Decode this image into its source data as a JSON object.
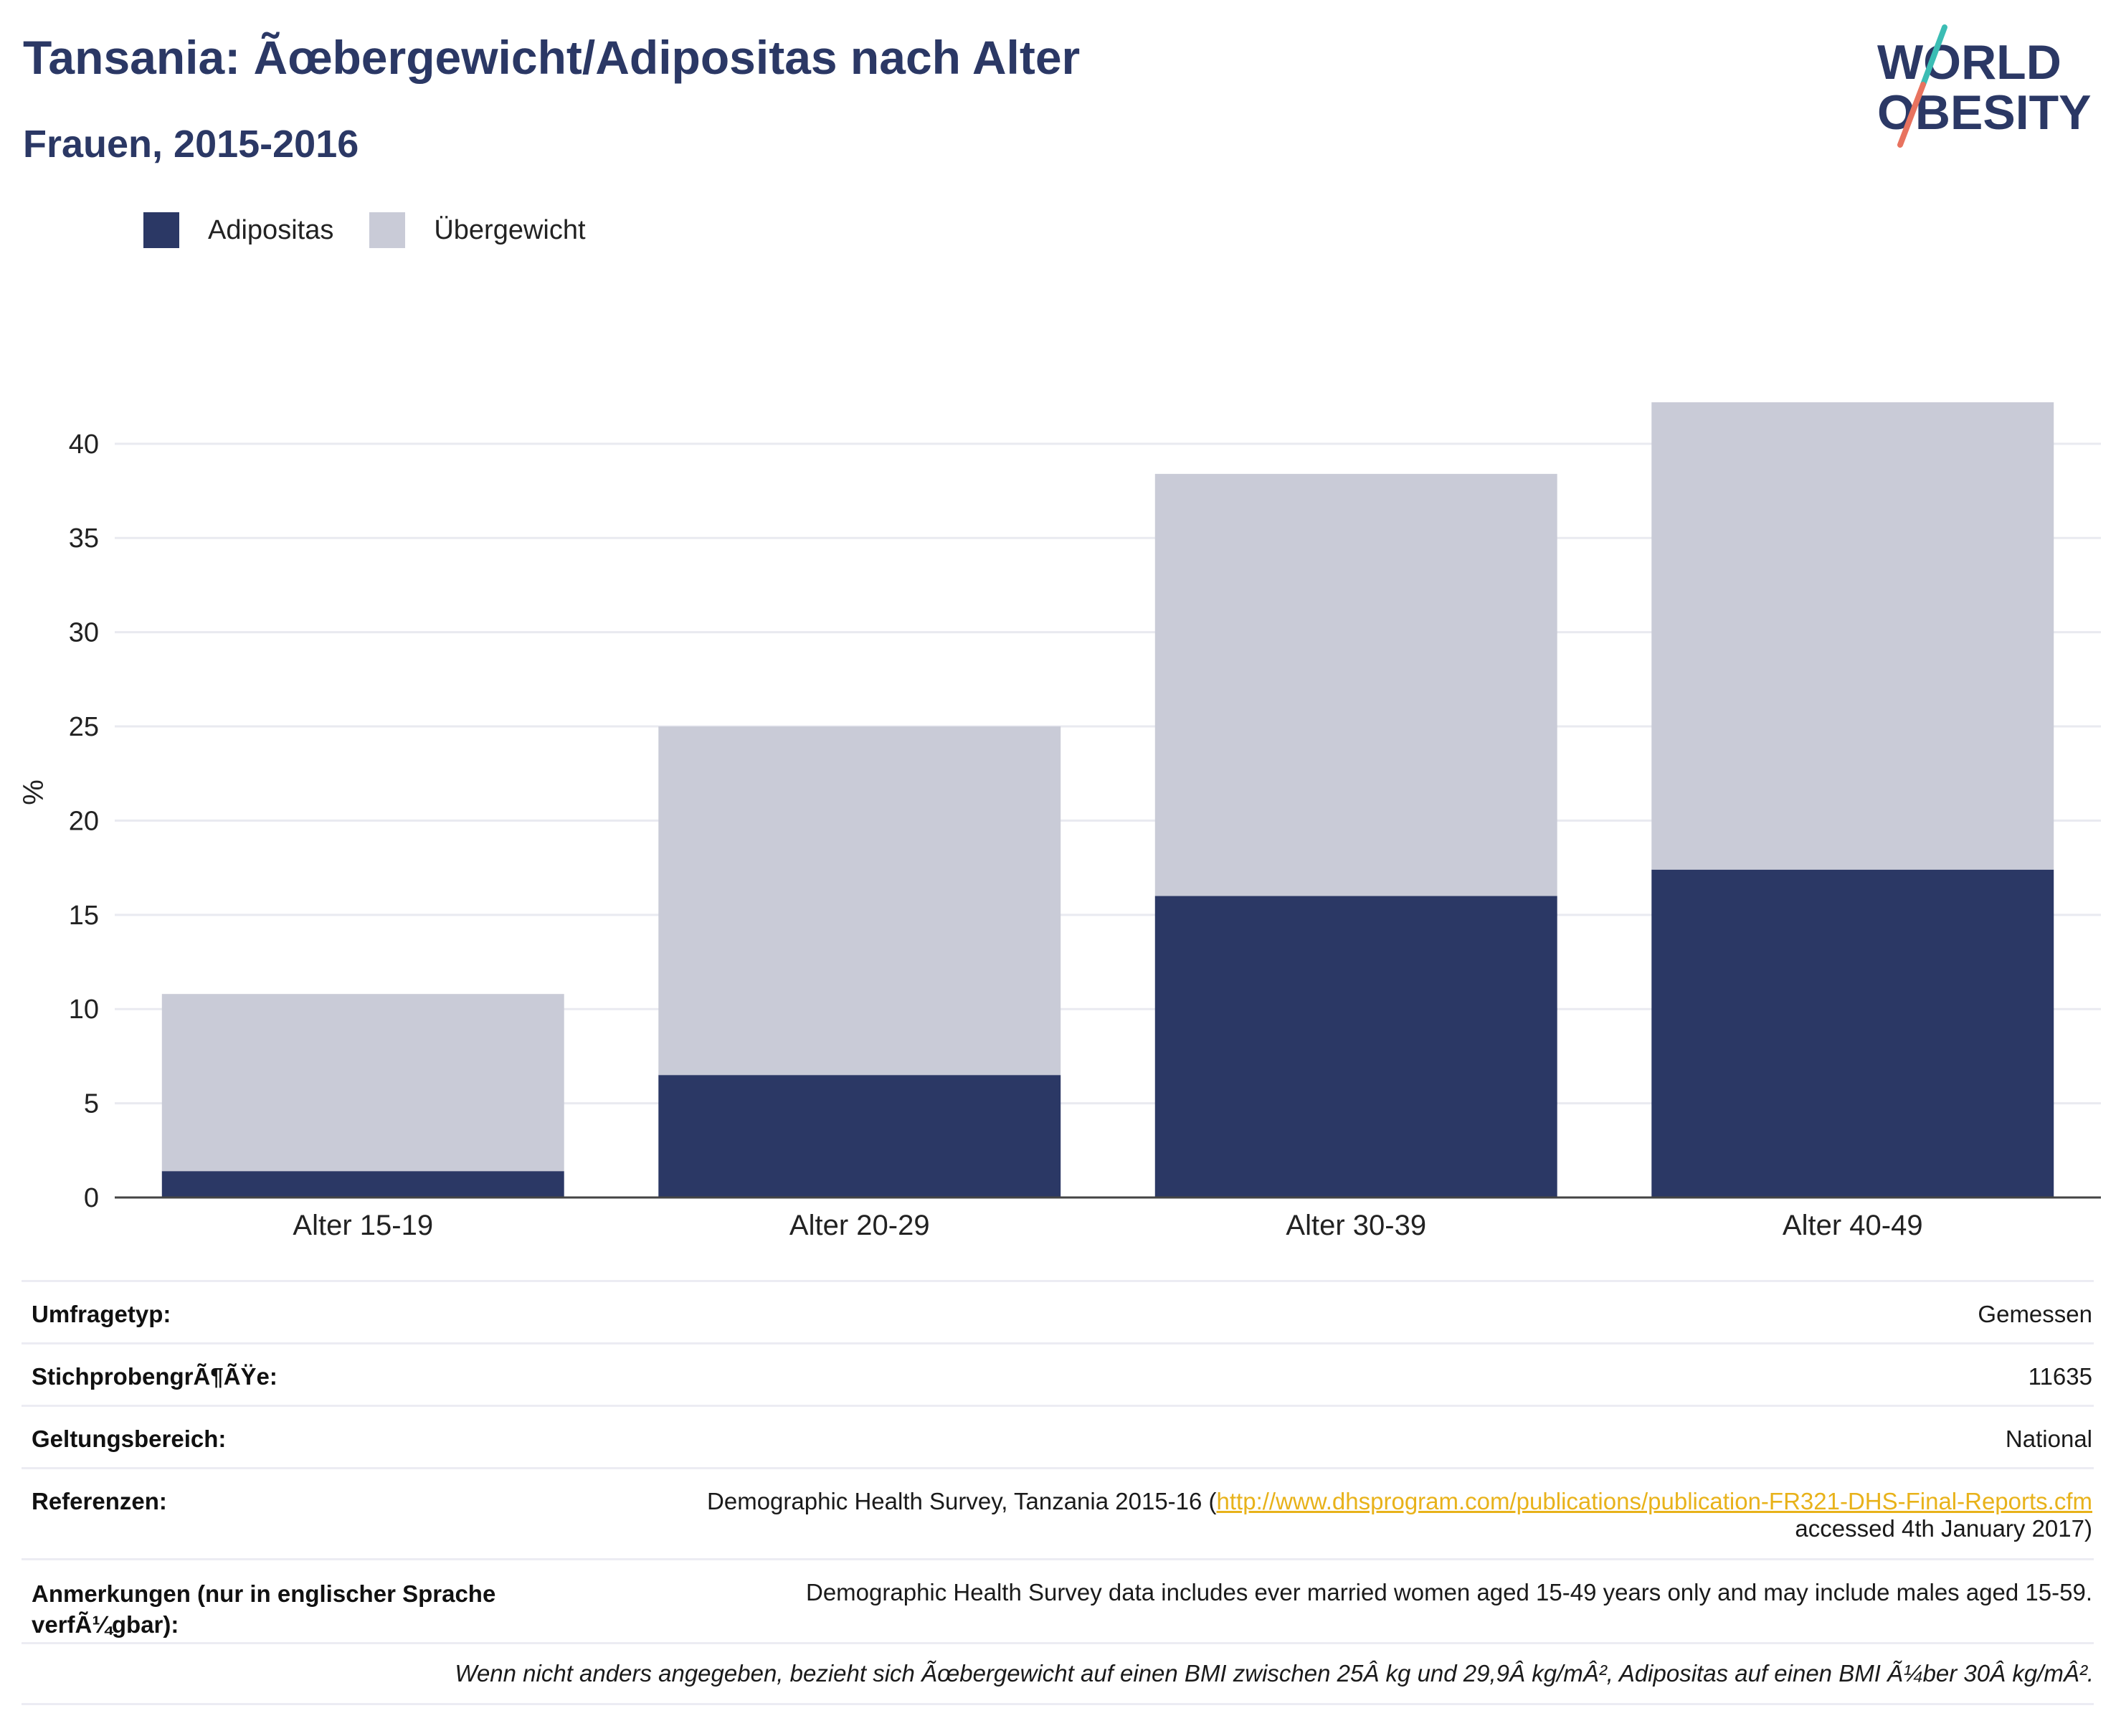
{
  "header": {
    "title": "Tansania: Ãœbergewicht/Adipositas nach Alter",
    "subtitle": "Frauen, 2015-2016"
  },
  "logo": {
    "line1": "WORLD",
    "line2": "OBESITY"
  },
  "colors": {
    "obesity": "#2b3865",
    "overweight": "#c9cbd7",
    "title": "#2b3865",
    "link": "#e8b21a"
  },
  "chart_data": {
    "type": "bar",
    "stacked": true,
    "categories": [
      "Alter 15-19",
      "Alter 20-29",
      "Alter 30-39",
      "Alter 40-49"
    ],
    "series": [
      {
        "name": "Adipositas",
        "values": [
          1.4,
          6.5,
          16.0,
          17.4
        ]
      },
      {
        "name": "Übergewicht",
        "values": [
          9.4,
          18.5,
          22.4,
          24.8
        ]
      }
    ],
    "totals": [
      10.8,
      25.0,
      38.4,
      42.2
    ],
    "ylabel": "%",
    "xlabel": "",
    "ylim": [
      0,
      43
    ],
    "yticks": [
      0,
      5,
      10,
      15,
      20,
      25,
      30,
      35,
      40
    ],
    "grid": true,
    "legend_position": "top-left"
  },
  "meta": {
    "survey_type": {
      "label": "Umfragetyp:",
      "value": "Gemessen"
    },
    "sample_size": {
      "label": "StichprobengrÃ¶ÃŸe:",
      "value": "11635"
    },
    "coverage": {
      "label": "Geltungsbereich:",
      "value": "National"
    },
    "references": {
      "label": "Referenzen:",
      "prefix": "Demographic Health Survey, Tanzania 2015-16 (",
      "url": "http://www.dhsprogram.com/publications/publication-FR321-DHS-Final-Reports.cfm",
      "suffix": "accessed 4th January 2017)"
    },
    "notes": {
      "label": "Anmerkungen (nur in englischer Sprache verfÃ¼gbar):",
      "value": "Demographic Health Survey data includes ever married women aged 15-49 years only and may include males aged 15-59."
    }
  },
  "footnote": "Wenn nicht anders angegeben, bezieht sich Ãœbergewicht auf einen BMI zwischen 25Â kg und 29,9Â kg/mÂ², Adipositas auf einen BMI Ã¼ber 30Â kg/mÂ²."
}
